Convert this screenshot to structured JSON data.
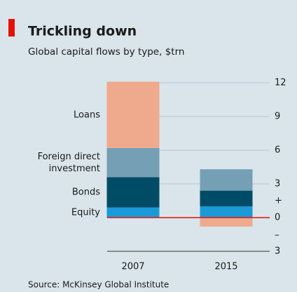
{
  "chart_data": {
    "type": "bar",
    "stacked": true,
    "title": "Trickling down",
    "subtitle": "Global capital flows by type, $trn",
    "source": "Source: McKinsey Global Institute",
    "annotations": [
      "+",
      "–"
    ],
    "categories": [
      "2007",
      "2015"
    ],
    "series": [
      {
        "name": "Equity",
        "color": "#1a9bd7",
        "values": [
          0.9,
          1.0
        ]
      },
      {
        "name": "Bonds",
        "color": "#004b66",
        "values": [
          2.7,
          1.4
        ]
      },
      {
        "name": "Foreign direct investment",
        "color": "#759fb5",
        "values": [
          2.6,
          1.9
        ]
      },
      {
        "name": "Loans",
        "color": "#efa98d",
        "values": [
          5.9,
          -0.8
        ]
      }
    ],
    "ylim": [
      -3,
      12
    ],
    "yticks": [
      {
        "value": -3,
        "label": "3"
      },
      0,
      3,
      6,
      9,
      12
    ],
    "grid": true,
    "zero_line_color": "#e3120b"
  }
}
